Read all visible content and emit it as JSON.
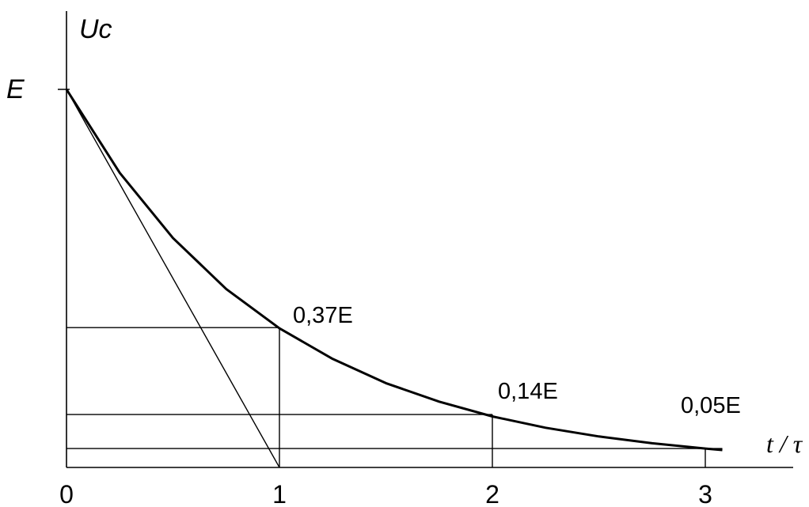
{
  "chart_data": {
    "type": "line",
    "title": "",
    "ylabel": "Uc",
    "xlabel": "t / τ",
    "y_tick_label": "E",
    "x_tick_labels": [
      "0",
      "1",
      "2",
      "3"
    ],
    "xlim": [
      0,
      3.4
    ],
    "ylim": [
      0,
      1
    ],
    "series": [
      {
        "x": [
          0,
          0.25,
          0.5,
          0.75,
          1,
          1.25,
          1.5,
          1.75,
          2,
          2.25,
          2.5,
          2.75,
          3,
          3.08
        ],
        "y": [
          1,
          0.779,
          0.607,
          0.472,
          0.368,
          0.287,
          0.223,
          0.174,
          0.135,
          0.105,
          0.082,
          0.064,
          0.05,
          0.046
        ]
      }
    ],
    "tangent": {
      "from": [
        0,
        1
      ],
      "to": [
        1,
        0
      ]
    },
    "reference_levels": [
      {
        "x": 1,
        "y": 0.37,
        "label": "0,37E"
      },
      {
        "x": 2,
        "y": 0.14,
        "label": "0,14E"
      },
      {
        "x": 3,
        "y": 0.05,
        "label": "0,05E"
      }
    ]
  }
}
